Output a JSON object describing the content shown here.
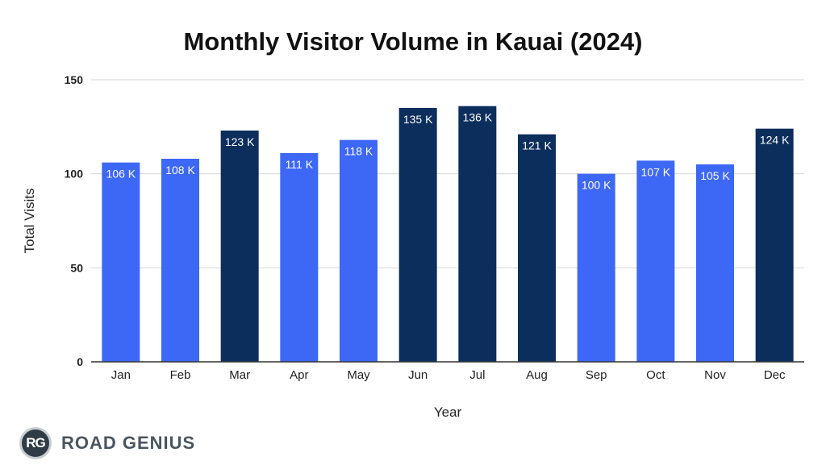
{
  "chart_data": {
    "type": "bar",
    "title": "Monthly Visitor Volume in Kauai (2024)",
    "xlabel": "Year",
    "ylabel": "Total Visits",
    "categories": [
      "Jan",
      "Feb",
      "Mar",
      "Apr",
      "May",
      "Jun",
      "Jul",
      "Aug",
      "Sep",
      "Oct",
      "Nov",
      "Dec"
    ],
    "values": [
      106,
      108,
      123,
      111,
      118,
      135,
      136,
      121,
      100,
      107,
      105,
      124
    ],
    "value_labels": [
      "106 K",
      "108 K",
      "123 K",
      "111 K",
      "118 K",
      "135 K",
      "136 K",
      "121 K",
      "100 K",
      "107 K",
      "105 K",
      "124 K"
    ],
    "highlight": [
      false,
      false,
      true,
      false,
      false,
      true,
      true,
      true,
      false,
      false,
      false,
      true
    ],
    "ylim": [
      0,
      150
    ],
    "yticks": [
      0,
      50,
      100,
      150
    ],
    "grid": true,
    "legend": "none",
    "colors": {
      "normal": "#3d67f5",
      "highlight": "#0c2e5c",
      "grid": "#d6d6d6",
      "axis": "#333333"
    }
  },
  "brand": {
    "logo_text": "RG",
    "name": "ROAD GENIUS"
  }
}
